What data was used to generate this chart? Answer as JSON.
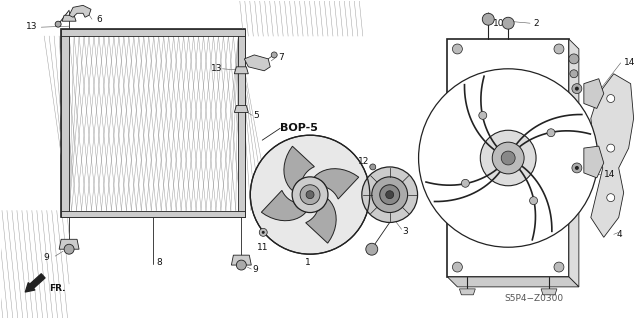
{
  "background_color": "#ffffff",
  "line_color": "#222222",
  "text_color": "#111111",
  "part_code": "S5P4−Z0300",
  "figsize": [
    6.4,
    3.19
  ],
  "dpi": 100
}
